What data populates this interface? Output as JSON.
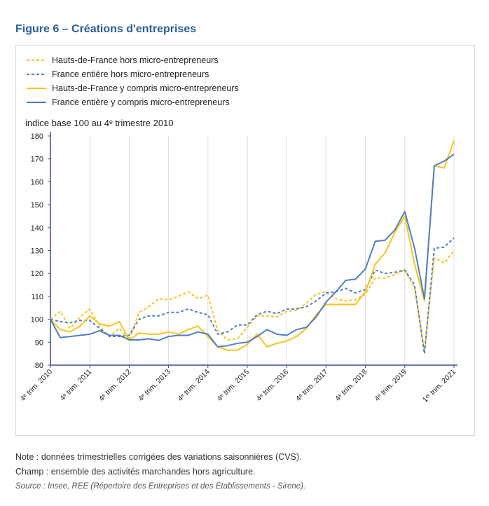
{
  "chart_data": {
    "type": "line",
    "title": "Figure 6 – Créations d'entreprises",
    "y_label": "indice base 100 au 4ᵉ trimestre 2010",
    "notes": [
      "Note : données trimestrielles corrigées des variations saisonnières (CVS).",
      "Champ : ensemble des activités marchandes hors agriculture."
    ],
    "source": "Source : Insee, REE (Répertoire des Entreprises et des Établissements - Sirene).",
    "categories": [
      "4ᵉ trim. 2010",
      null,
      null,
      null,
      "4ᵉ trim. 2011",
      null,
      null,
      null,
      "4ᵉ trim. 2012",
      null,
      null,
      null,
      "4ᵉ trim. 2013",
      null,
      null,
      null,
      "4ᵉ trim. 2014",
      null,
      null,
      null,
      "4ᵉ trim. 2015",
      null,
      null,
      null,
      "4ᵉ trim. 2016",
      null,
      null,
      null,
      "4ᵉ trim. 2017",
      null,
      null,
      null,
      "4ᵉ trim. 2018",
      null,
      null,
      null,
      "4ᵉ trim. 2019",
      null,
      null,
      null,
      null,
      "1ᵉʳ trim. 2021"
    ],
    "ylim": [
      80,
      180
    ],
    "yticks": [
      80,
      90,
      100,
      110,
      120,
      130,
      140,
      150,
      160,
      170,
      180
    ],
    "x_grid": true,
    "legend": "top-left",
    "series": [
      {
        "name": "Hauts-de-France hors micro-entrepreneurs",
        "color": "#f5c51c",
        "dashed": true,
        "values": [
          100,
          103.5,
          96,
          101,
          104.5,
          97,
          92.5,
          96,
          91,
          103,
          105.5,
          109,
          108.5,
          110,
          112,
          109,
          110.5,
          95,
          91,
          91.5,
          96.5,
          101.5,
          101.5,
          101,
          103.5,
          104,
          107,
          111,
          112,
          109,
          108,
          108.5,
          111,
          118,
          118,
          119.5,
          121.5,
          113.5,
          86,
          127,
          124.5,
          130
        ]
      },
      {
        "name": "France entière hors micro-entrepreneurs",
        "color": "#4f7fc4",
        "dashed": true,
        "values": [
          100,
          99,
          98.5,
          99.5,
          99.5,
          96,
          92.5,
          92.5,
          93,
          100,
          101.5,
          101.5,
          103,
          103,
          104.5,
          103,
          102,
          93.5,
          94.5,
          97.5,
          97.5,
          102,
          103.5,
          102.5,
          104.5,
          104.5,
          105.5,
          108,
          111.5,
          112,
          113.5,
          111.5,
          113,
          121.5,
          120,
          120.5,
          121.5,
          115,
          85,
          131,
          131.5,
          135.5
        ]
      },
      {
        "name": "Hauts-de-France y compris micro-entrepreneurs",
        "color": "#f5c51c",
        "dashed": false,
        "values": [
          100,
          95.5,
          94.5,
          97,
          101.5,
          98,
          97,
          99,
          91,
          94,
          93.5,
          93.5,
          94.5,
          93.5,
          95.5,
          97,
          92.5,
          88,
          86.5,
          86.5,
          89,
          93.5,
          88,
          89.5,
          90.5,
          92.5,
          96,
          102,
          106.5,
          106.5,
          106.5,
          106.5,
          112,
          124,
          129,
          138,
          145,
          124,
          108,
          167,
          166,
          178
        ]
      },
      {
        "name": "France entière y compris micro-entrepreneurs",
        "color": "#4f7fc4",
        "dashed": false,
        "values": [
          100,
          92,
          92.5,
          93,
          93.5,
          95,
          93,
          93,
          91,
          91,
          91.5,
          90.8,
          92.5,
          93,
          93,
          94.5,
          93.5,
          88,
          88.5,
          89.5,
          90,
          92.5,
          95.5,
          93.5,
          93,
          95.5,
          96.5,
          101,
          107.5,
          112,
          117,
          117.5,
          122,
          134,
          134.5,
          139,
          147,
          131,
          109,
          167,
          169,
          172
        ]
      }
    ]
  }
}
